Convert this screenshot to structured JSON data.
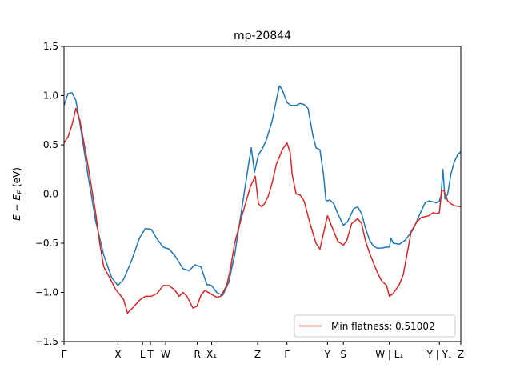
{
  "chart_data": {
    "type": "line",
    "title": "mp-20844",
    "xlabel": "",
    "ylabel": "E − E_F (eV)",
    "ylim": [
      -1.5,
      1.5
    ],
    "yticks": [
      1.5,
      1.0,
      0.5,
      0.0,
      -0.5,
      -1.0,
      -1.5
    ],
    "ytick_labels": [
      "1.5",
      "1.0",
      "0.5",
      "0.0",
      "−0.5",
      "−1.0",
      "−1.5"
    ],
    "xlim": [
      0,
      100
    ],
    "xticks": [
      {
        "x": 0,
        "label": "Γ"
      },
      {
        "x": 13.6,
        "label": "X"
      },
      {
        "x": 19.8,
        "label": "L"
      },
      {
        "x": 21.8,
        "label": "T"
      },
      {
        "x": 25.6,
        "label": "W"
      },
      {
        "x": 33.6,
        "label": "R"
      },
      {
        "x": 37.2,
        "label": "X₁"
      },
      {
        "x": 48.8,
        "label": "Z"
      },
      {
        "x": 56.2,
        "label": "Γ"
      },
      {
        "x": 66.4,
        "label": "Y"
      },
      {
        "x": 70.4,
        "label": "S"
      },
      {
        "x": 82.0,
        "label": "W | L₁"
      },
      {
        "x": 94.6,
        "label": "Y | Y₁"
      },
      {
        "x": 100,
        "label": "Z"
      }
    ],
    "grid": false,
    "legend": {
      "placement": "lower right",
      "entries": [
        "Min flatness: 0.51002"
      ]
    },
    "series": [
      {
        "name": "",
        "color": "#1f77b4",
        "x": [
          0,
          1,
          2,
          3,
          4,
          6,
          8,
          10,
          12,
          13.6,
          15,
          17,
          19,
          20.5,
          22,
          23.5,
          25,
          26.5,
          28,
          30,
          31.5,
          33,
          34.5,
          36,
          37.2,
          38.5,
          40,
          41.5,
          43,
          45,
          46.5,
          47.2,
          48,
          49,
          50,
          51,
          52.5,
          53.5,
          54.3,
          55,
          56.2,
          57.2,
          58.5,
          59.5,
          60.5,
          61.5,
          62.7,
          63.5,
          64.5,
          65.4,
          66,
          66.4,
          67,
          68,
          69,
          70.4,
          71.5,
          73,
          74,
          75,
          76,
          77,
          78,
          79,
          80,
          81.3,
          82.0,
          82.4,
          83,
          84.5,
          86,
          88,
          89.5,
          91,
          92,
          93,
          93.8,
          94.6,
          95,
          95.5,
          96,
          96.7,
          97.5,
          98.3,
          99.2,
          100
        ],
        "y": [
          0.9,
          1.02,
          1.03,
          0.95,
          0.72,
          0.2,
          -0.28,
          -0.62,
          -0.85,
          -0.93,
          -0.87,
          -0.68,
          -0.45,
          -0.35,
          -0.36,
          -0.46,
          -0.54,
          -0.56,
          -0.63,
          -0.76,
          -0.78,
          -0.72,
          -0.74,
          -0.92,
          -0.93,
          -1.0,
          -1.03,
          -0.9,
          -0.62,
          -0.1,
          0.3,
          0.47,
          0.22,
          0.4,
          0.46,
          0.55,
          0.75,
          0.95,
          1.1,
          1.06,
          0.93,
          0.9,
          0.9,
          0.92,
          0.91,
          0.87,
          0.6,
          0.47,
          0.45,
          0.2,
          -0.06,
          -0.07,
          -0.06,
          -0.1,
          -0.2,
          -0.32,
          -0.28,
          -0.15,
          -0.13,
          -0.2,
          -0.35,
          -0.47,
          -0.53,
          -0.55,
          -0.55,
          -0.54,
          -0.54,
          -0.45,
          -0.5,
          -0.51,
          -0.47,
          -0.36,
          -0.22,
          -0.09,
          -0.07,
          -0.08,
          -0.09,
          -0.07,
          -0.02,
          0.25,
          -0.05,
          0.0,
          0.2,
          0.32,
          0.4,
          0.43
        ]
      },
      {
        "name": "Min flatness: 0.51002",
        "color": "#d62728",
        "x": [
          0,
          1,
          2,
          3,
          4,
          6,
          8,
          9,
          10,
          11.5,
          13,
          14,
          15,
          16,
          17.5,
          19,
          20.5,
          22,
          23.5,
          25,
          26.5,
          28,
          29,
          30,
          31,
          32.5,
          33.5,
          34.5,
          35.5,
          37.2,
          38.5,
          39.5,
          41,
          42,
          43,
          45,
          47,
          48.2,
          49,
          49.8,
          50.5,
          51.5,
          52.5,
          53.5,
          55,
          56.2,
          57,
          57.5,
          58.5,
          59.5,
          60.5,
          62,
          63.5,
          64.5,
          65.4,
          66.4,
          67,
          68,
          69,
          70.4,
          71.3,
          72.5,
          74,
          75,
          76,
          77,
          78,
          79,
          80,
          81.3,
          82.0,
          82.7,
          83.5,
          84.5,
          85.5,
          86.5,
          87.5,
          89,
          90,
          91,
          92,
          93,
          93.8,
          94.6,
          95.2,
          95.8,
          96.7,
          97.5,
          98.5,
          100
        ],
        "y": [
          0.52,
          0.58,
          0.7,
          0.87,
          0.75,
          0.3,
          -0.2,
          -0.5,
          -0.74,
          -0.85,
          -0.97,
          -1.02,
          -1.07,
          -1.21,
          -1.15,
          -1.08,
          -1.04,
          -1.04,
          -1.01,
          -0.93,
          -0.93,
          -0.98,
          -1.04,
          -1.0,
          -1.04,
          -1.16,
          -1.14,
          -1.03,
          -0.98,
          -1.02,
          -1.05,
          -1.04,
          -0.93,
          -0.75,
          -0.5,
          -0.2,
          0.08,
          0.18,
          -0.1,
          -0.13,
          -0.1,
          -0.02,
          0.12,
          0.3,
          0.45,
          0.52,
          0.42,
          0.2,
          0.0,
          -0.01,
          -0.07,
          -0.3,
          -0.5,
          -0.56,
          -0.4,
          -0.22,
          -0.28,
          -0.38,
          -0.48,
          -0.52,
          -0.47,
          -0.3,
          -0.25,
          -0.3,
          -0.48,
          -0.6,
          -0.7,
          -0.8,
          -0.88,
          -0.93,
          -1.04,
          -1.02,
          -0.98,
          -0.92,
          -0.82,
          -0.6,
          -0.38,
          -0.28,
          -0.24,
          -0.23,
          -0.22,
          -0.19,
          -0.2,
          -0.19,
          0.04,
          0.03,
          -0.07,
          -0.1,
          -0.12,
          -0.13
        ]
      }
    ]
  }
}
